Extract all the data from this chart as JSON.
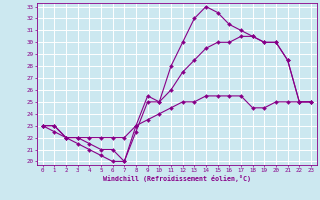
{
  "xlabel": "Windchill (Refroidissement éolien,°C)",
  "xlim": [
    -0.5,
    23.5
  ],
  "ylim": [
    19.7,
    33.3
  ],
  "xticks": [
    0,
    1,
    2,
    3,
    4,
    5,
    6,
    7,
    8,
    9,
    10,
    11,
    12,
    13,
    14,
    15,
    16,
    17,
    18,
    19,
    20,
    21,
    22,
    23
  ],
  "yticks": [
    20,
    21,
    22,
    23,
    24,
    25,
    26,
    27,
    28,
    29,
    30,
    31,
    32,
    33
  ],
  "bg_color": "#cce8f0",
  "line_color": "#880088",
  "grid_color": "#ffffff",
  "line1_x": [
    0,
    1,
    2,
    3,
    4,
    5,
    6,
    7,
    8,
    9,
    10,
    11,
    12,
    13,
    14,
    15,
    16,
    17,
    18,
    19,
    20,
    21,
    22,
    23
  ],
  "line1_y": [
    23,
    23,
    22,
    21.5,
    21,
    20.5,
    20,
    20,
    22.5,
    25,
    25,
    28,
    30,
    32,
    33,
    32.5,
    31.5,
    31,
    30.5,
    30,
    30,
    28.5,
    25,
    25
  ],
  "line2_x": [
    0,
    1,
    2,
    3,
    4,
    5,
    6,
    7,
    8,
    9,
    10,
    11,
    12,
    13,
    14,
    15,
    16,
    17,
    18,
    19,
    20,
    21,
    22,
    23
  ],
  "line2_y": [
    23,
    22.5,
    22,
    22,
    21.5,
    21,
    21,
    20,
    23,
    25.5,
    25,
    26,
    27.5,
    28.5,
    29.5,
    30,
    30,
    30.5,
    30.5,
    30,
    30,
    28.5,
    25,
    25
  ],
  "line3_x": [
    0,
    1,
    2,
    3,
    4,
    5,
    6,
    7,
    8,
    9,
    10,
    11,
    12,
    13,
    14,
    15,
    16,
    17,
    18,
    19,
    20,
    21,
    22,
    23
  ],
  "line3_y": [
    23,
    23,
    22,
    22,
    22,
    22,
    22,
    22,
    23,
    23.5,
    24,
    24.5,
    25,
    25,
    25.5,
    25.5,
    25.5,
    25.5,
    24.5,
    24.5,
    25,
    25,
    25,
    25
  ]
}
